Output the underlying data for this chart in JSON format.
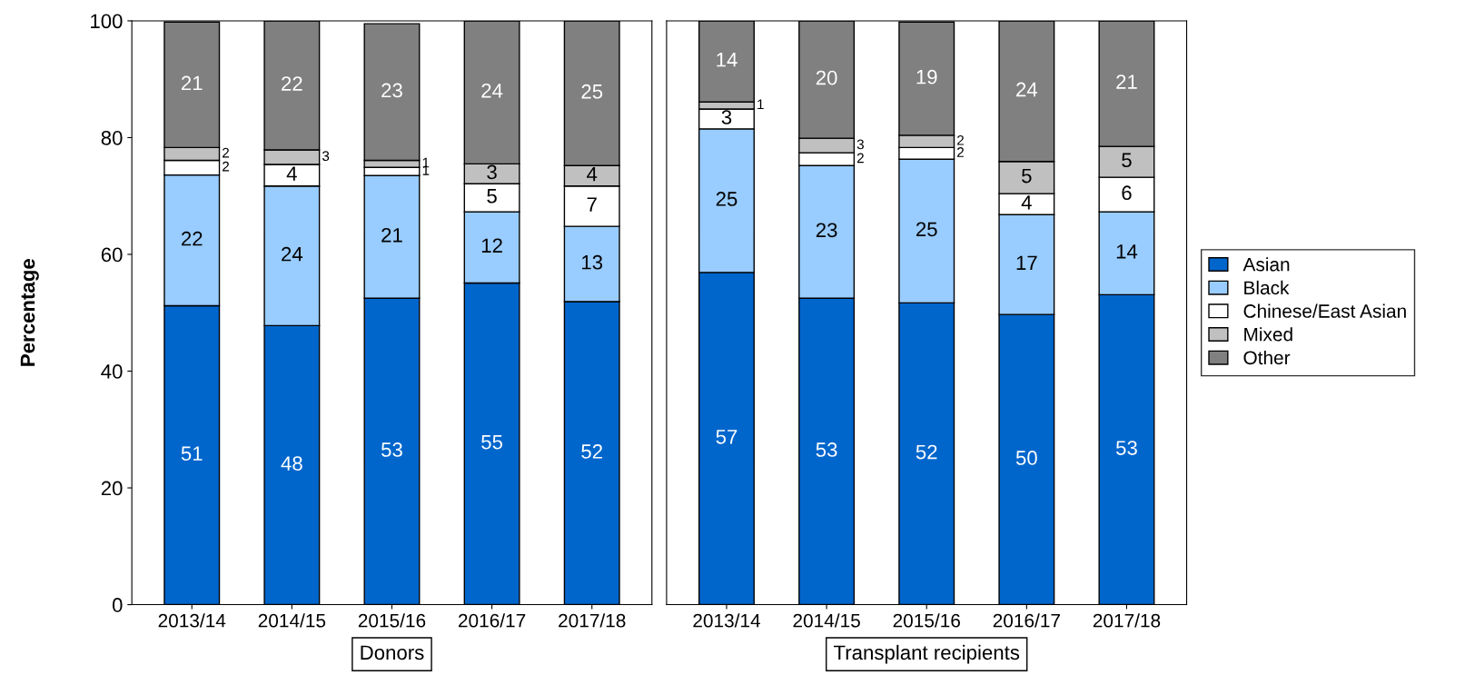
{
  "chart_data": [
    {
      "type": "bar",
      "stacked": true,
      "title": "Donors",
      "ylabel": "Percentage",
      "categories": [
        "2013/14",
        "2014/15",
        "2015/16",
        "2016/17",
        "2017/18"
      ],
      "ylim": [
        0,
        100
      ],
      "yticks": [
        0,
        20,
        40,
        60,
        80,
        100
      ],
      "grid": false,
      "series": [
        {
          "color": "#0066cc",
          "values": [
            51.2,
            47.8,
            52.5,
            55.1,
            51.9
          ],
          "value_labels": [
            "51",
            "48",
            "53",
            "55",
            "52"
          ]
        },
        {
          "color": "#99ccff",
          "values": [
            22.4,
            23.9,
            21.0,
            12.2,
            12.9
          ],
          "value_labels": [
            "22",
            "24",
            "21",
            "12",
            "13"
          ]
        },
        {
          "color": "#ffffff",
          "values": [
            2.5,
            3.7,
            1.4,
            4.8,
            6.9
          ],
          "value_labels": [
            "2",
            "4",
            "1",
            "5",
            "7"
          ]
        },
        {
          "color": "#c0c0c0",
          "values": [
            2.2,
            2.5,
            1.2,
            3.4,
            3.5
          ],
          "value_labels": [
            "2",
            "3",
            "1",
            "3",
            "4"
          ]
        },
        {
          "color": "#808080",
          "values": [
            21.5,
            22.1,
            23.4,
            24.5,
            24.8
          ],
          "value_labels": [
            "21",
            "22",
            "23",
            "24",
            "25"
          ]
        }
      ]
    },
    {
      "type": "bar",
      "stacked": true,
      "title": "Transplant recipients",
      "categories": [
        "2013/14",
        "2014/15",
        "2015/16",
        "2016/17",
        "2017/18"
      ],
      "ylim": [
        0,
        100
      ],
      "yticks": [
        0,
        20,
        40,
        60,
        80,
        100
      ],
      "tick_labels": "x",
      "legend": "right",
      "grid": false,
      "series": [
        {
          "name": "Asian",
          "color": "#0066cc",
          "values": [
            56.9,
            52.5,
            51.7,
            49.7,
            53.1
          ],
          "value_labels": [
            "57",
            "53",
            "52",
            "50",
            "53"
          ]
        },
        {
          "name": "Black",
          "color": "#99ccff",
          "values": [
            24.6,
            22.7,
            24.6,
            17.1,
            14.2
          ],
          "value_labels": [
            "25",
            "23",
            "25",
            "17",
            "14"
          ]
        },
        {
          "name": "Chinese/East Asian",
          "color": "#ffffff",
          "values": [
            3.4,
            2.2,
            2.0,
            3.6,
            5.9
          ],
          "value_labels": [
            "3",
            "2",
            "2",
            "4",
            "6"
          ]
        },
        {
          "name": "Mixed",
          "color": "#c0c0c0",
          "values": [
            1.2,
            2.5,
            2.1,
            5.5,
            5.3
          ],
          "value_labels": [
            "1",
            "3",
            "2",
            "5",
            "5"
          ]
        },
        {
          "name": "Other",
          "color": "#808080",
          "values": [
            13.9,
            20.1,
            19.4,
            24.1,
            21.5
          ],
          "value_labels": [
            "14",
            "20",
            "19",
            "24",
            "21"
          ]
        }
      ]
    }
  ]
}
